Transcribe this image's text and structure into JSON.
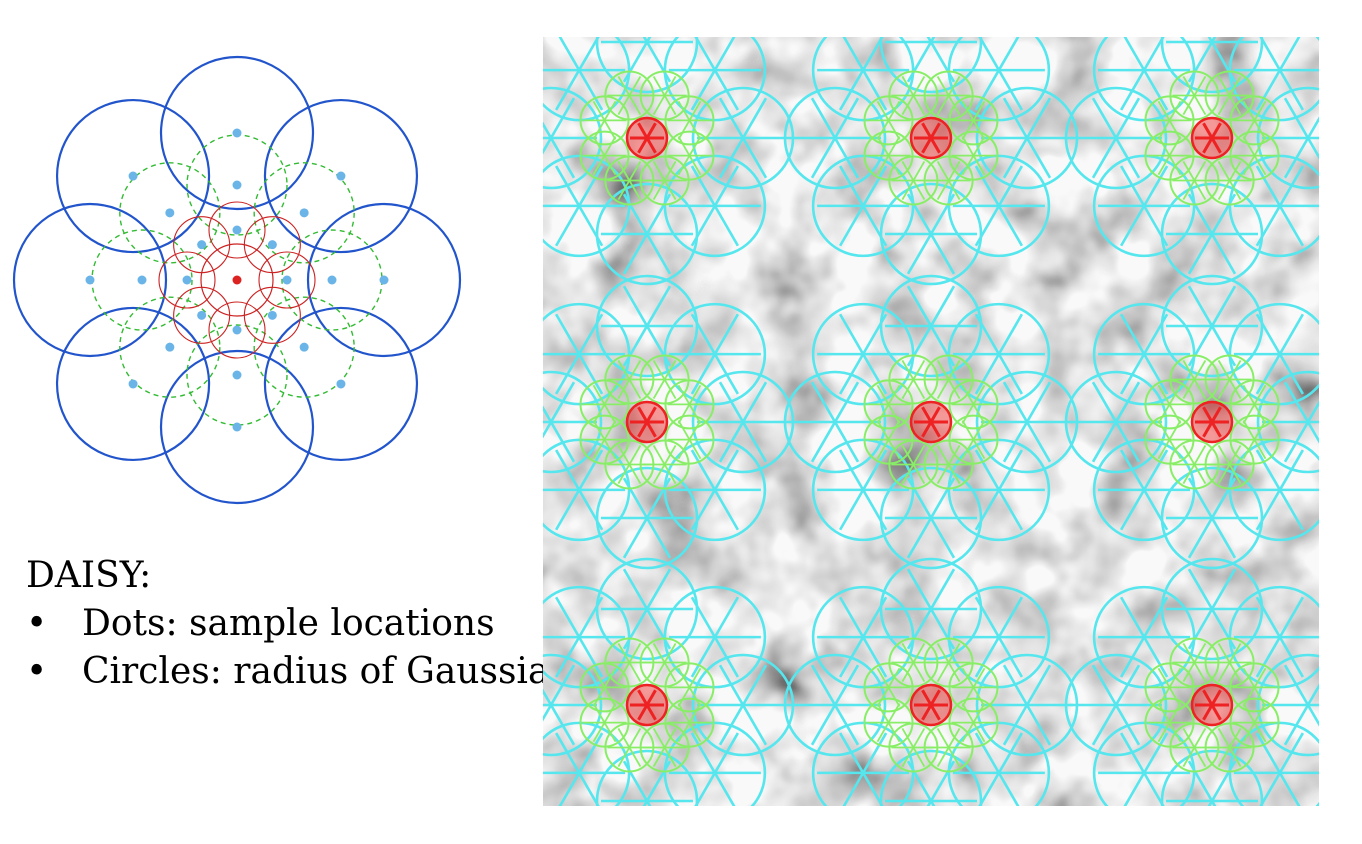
{
  "caption": {
    "title": "DAISY:",
    "bullet_symbol": "•",
    "items": [
      {
        "label": "Dots: sample locations"
      },
      {
        "label": "Circles: radius of Gaussian blurring"
      }
    ]
  },
  "diagram": {
    "colors": {
      "outer_ring": "#2255cc",
      "middle_ring": "#33bb33",
      "inner_ring": "#cc2222",
      "sample_dot": "#6ab4e8",
      "center_dot": "#dd2222"
    },
    "rings": [
      {
        "level": "inner",
        "samples": 8,
        "style": "solid"
      },
      {
        "level": "middle",
        "samples": 8,
        "style": "dashed"
      },
      {
        "level": "outer",
        "samples": 8,
        "style": "solid"
      }
    ]
  },
  "overlay": {
    "colors": {
      "outer": "#55e6ee",
      "middle": "#88ee66",
      "center": "#ee2222",
      "image_base": "#8a8a8a"
    },
    "grid": {
      "rows": 3,
      "cols": 3
    }
  }
}
